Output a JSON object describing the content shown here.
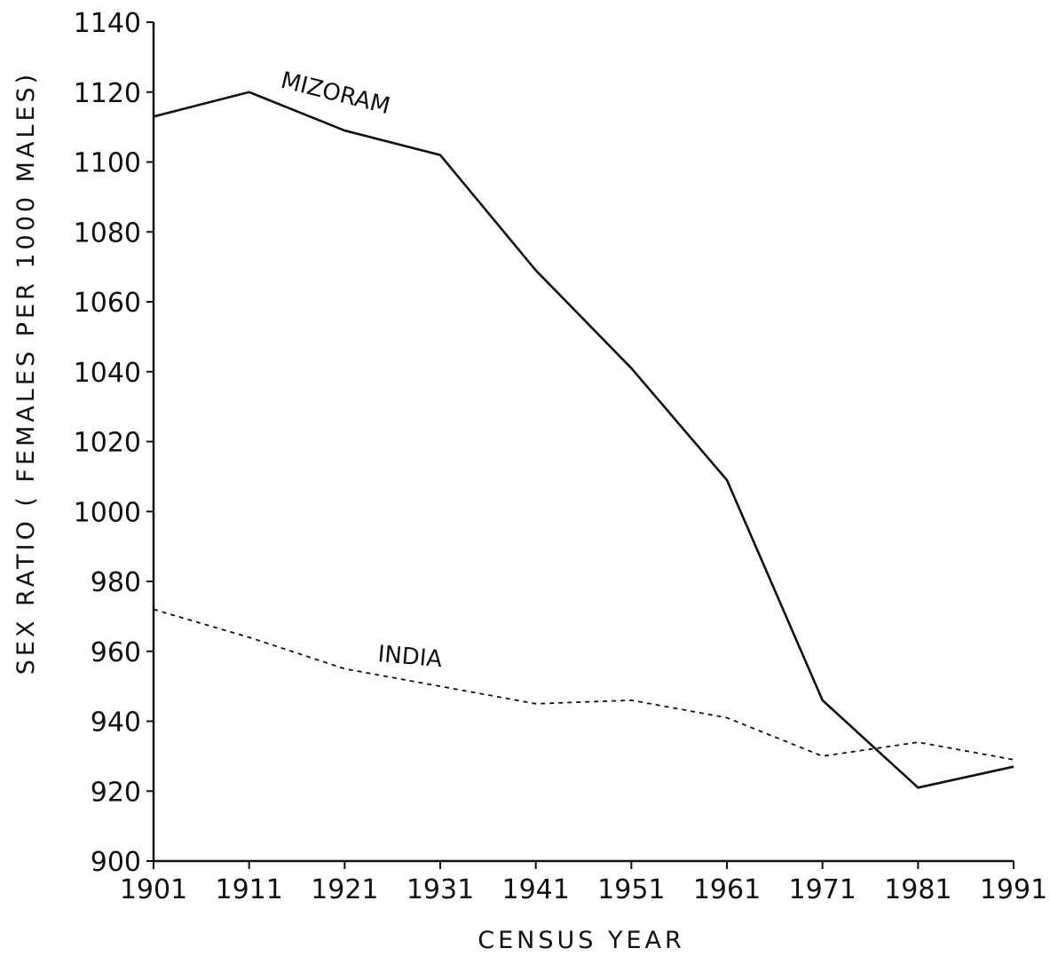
{
  "chart_data": {
    "type": "line",
    "title": "",
    "xlabel": "CENSUS YEAR",
    "ylabel": "SEX RATIO ( FEMALES PER 1000 MALES)",
    "x": [
      1901,
      1911,
      1921,
      1931,
      1941,
      1951,
      1961,
      1971,
      1981,
      1991
    ],
    "xticks": [
      "1901",
      "1911",
      "1921",
      "1931",
      "1941",
      "1951",
      "1961",
      "1971",
      "1981",
      "1991"
    ],
    "yticks": [
      900,
      920,
      940,
      960,
      980,
      1000,
      1020,
      1040,
      1060,
      1080,
      1100,
      1120,
      1140
    ],
    "ytick_labels": [
      "900",
      "920",
      "940",
      "960",
      "980",
      "1000",
      "1020",
      "1040",
      "1060",
      "1080",
      "1100",
      "1120",
      "1140"
    ],
    "xlim": [
      1901,
      1991
    ],
    "ylim": [
      900,
      1140
    ],
    "grid": false,
    "legend": "none",
    "series": [
      {
        "name": "MIZORAM",
        "style": "solid",
        "color": "#111111",
        "values": [
          1113,
          1120,
          1109,
          1102,
          1069,
          1041,
          1009,
          946,
          921,
          927
        ]
      },
      {
        "name": "INDIA",
        "style": "dashed",
        "color": "#111111",
        "values": [
          972,
          964,
          955,
          950,
          945,
          946,
          941,
          930,
          934,
          929
        ]
      }
    ]
  }
}
